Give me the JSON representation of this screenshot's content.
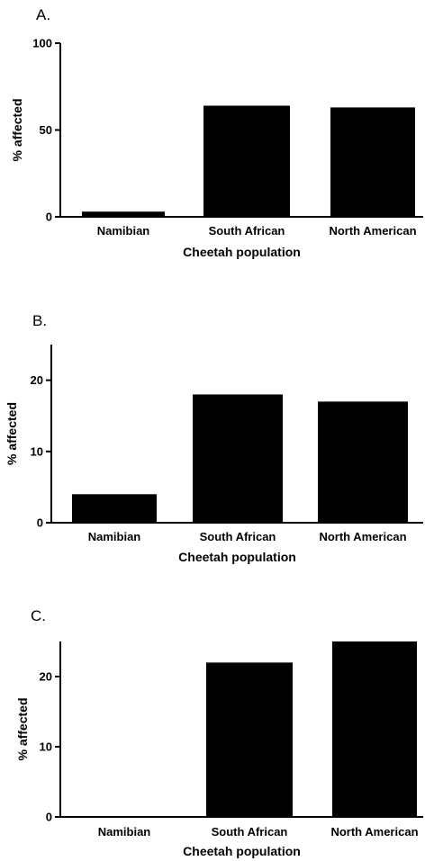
{
  "chart_data": [
    {
      "type": "bar",
      "panel_label": "A.",
      "categories": [
        "Namibian",
        "South African",
        "North American"
      ],
      "values": [
        3,
        64,
        63
      ],
      "xlabel": "Cheetah population",
      "ylabel": "% affected",
      "ylim": [
        0,
        100
      ],
      "yticks": [
        0,
        50,
        100
      ],
      "bar_color": "#000000",
      "grid": false
    },
    {
      "type": "bar",
      "panel_label": "B.",
      "categories": [
        "Namibian",
        "South African",
        "North American"
      ],
      "values": [
        4,
        18,
        17
      ],
      "xlabel": "Cheetah population",
      "ylabel": "% affected",
      "ylim": [
        0,
        25
      ],
      "yticks": [
        0,
        10,
        20
      ],
      "bar_color": "#000000",
      "grid": false
    },
    {
      "type": "bar",
      "panel_label": "C.",
      "categories": [
        "Namibian",
        "South African",
        "North American"
      ],
      "values": [
        0,
        22,
        25
      ],
      "xlabel": "Cheetah population",
      "ylabel": "% affected",
      "ylim": [
        0,
        25
      ],
      "yticks": [
        0,
        10,
        20
      ],
      "bar_color": "#000000",
      "grid": false
    }
  ]
}
